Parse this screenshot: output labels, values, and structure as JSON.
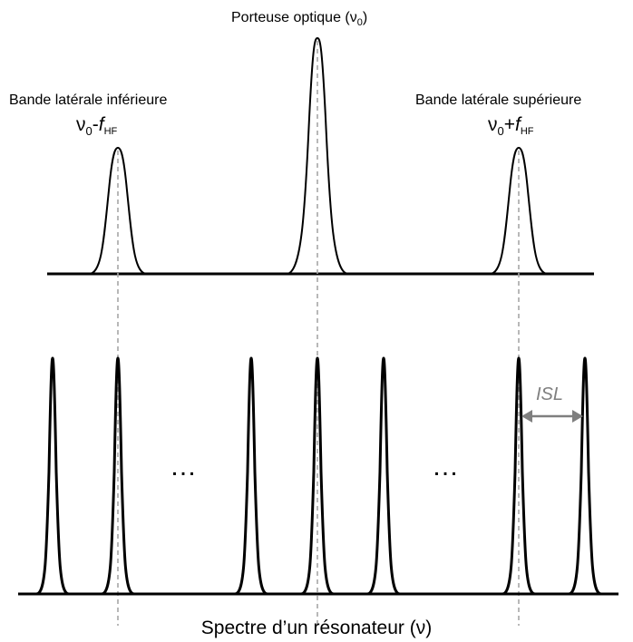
{
  "labels": {
    "carrier": "Porteuse optique (ν",
    "carrier_sub": "0",
    "carrier_close": ")",
    "lower_band": "Bande latérale inférieure",
    "upper_band": "Bande latérale supérieure",
    "nu": "ν",
    "sub0": "0",
    "minus": "-",
    "plus": "+",
    "f": "f",
    "hf": "HF",
    "isl": "ISL",
    "ellipsis": "…",
    "caption": "Spectre d’un résonateur (ν)"
  },
  "colors": {
    "line": "#000000",
    "guide": "#a6a6a6",
    "arrow": "#7f7f7f"
  }
}
